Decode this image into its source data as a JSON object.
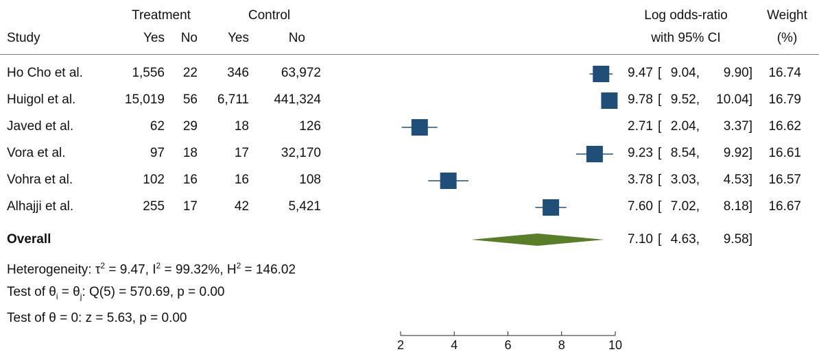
{
  "headers": {
    "treatment": "Treatment",
    "control": "Control",
    "study": "Study",
    "yes1": "Yes",
    "no1": "No",
    "yes2": "Yes",
    "no2": "No",
    "or_line1": "Log odds-ratio",
    "or_line2": "with 95% CI",
    "weight_line1": "Weight",
    "weight_line2": "(%)"
  },
  "rows": [
    {
      "study": "Ho Cho et al.",
      "t_yes": "1,556",
      "t_no": "22",
      "c_yes": "346",
      "c_no": "63,972",
      "est": "9.47",
      "lo": "9.04,",
      "hi": "9.90]",
      "weight": "16.74"
    },
    {
      "study": "Huigol et al.",
      "t_yes": "15,019",
      "t_no": "56",
      "c_yes": "6,711",
      "c_no": "441,324",
      "est": "9.78",
      "lo": "9.52,",
      "hi": "10.04]",
      "weight": "16.79"
    },
    {
      "study": "Javed et al.",
      "t_yes": "62",
      "t_no": "29",
      "c_yes": "18",
      "c_no": "126",
      "est": "2.71",
      "lo": "2.04,",
      "hi": "3.37]",
      "weight": "16.62"
    },
    {
      "study": "Vora et al.",
      "t_yes": "97",
      "t_no": "18",
      "c_yes": "17",
      "c_no": "32,170",
      "est": "9.23",
      "lo": "8.54,",
      "hi": "9.92]",
      "weight": "16.61"
    },
    {
      "study": "Vohra et al.",
      "t_yes": "102",
      "t_no": "16",
      "c_yes": "16",
      "c_no": "108",
      "est": "3.78",
      "lo": "3.03,",
      "hi": "4.53]",
      "weight": "16.57"
    },
    {
      "study": "Alhajji et al.",
      "t_yes": "255",
      "t_no": "17",
      "c_yes": "42",
      "c_no": "5,421",
      "est": "7.60",
      "lo": "7.02,",
      "hi": "8.18]",
      "weight": "16.67"
    }
  ],
  "overall": {
    "label": "Overall",
    "est": "7.10",
    "lo": "4.63,",
    "hi": "9.58]"
  },
  "stats": {
    "het_prefix": "Heterogeneity: τ",
    "het_mid": " = 9.47, I",
    "het_mid2": " = 99.32%, H",
    "het_end": " = 146.02",
    "sup2": "2",
    "test1_a": "Test of θ",
    "test1_i": "i",
    "test1_b": " = θ",
    "test1_j": "j",
    "test1_c": ": Q(5) = 570.69, p = 0.00",
    "test2": "Test of θ = 0: z = 5.63, p = 0.00"
  },
  "chart_data": {
    "type": "forest",
    "xlim": [
      2,
      10
    ],
    "xticks": [
      "2",
      "4",
      "6",
      "8",
      "10"
    ],
    "box_color": "#1f4e79",
    "diamond_color": "#5a7d2a",
    "studies": [
      {
        "name": "Ho Cho et al.",
        "est": 9.47,
        "lo": 9.04,
        "hi": 9.9,
        "weight": 16.74
      },
      {
        "name": "Huigol et al.",
        "est": 9.78,
        "lo": 9.52,
        "hi": 10.04,
        "weight": 16.79
      },
      {
        "name": "Javed et al.",
        "est": 2.71,
        "lo": 2.04,
        "hi": 3.37,
        "weight": 16.62
      },
      {
        "name": "Vora et al.",
        "est": 9.23,
        "lo": 8.54,
        "hi": 9.92,
        "weight": 16.61
      },
      {
        "name": "Vohra et al.",
        "est": 3.78,
        "lo": 3.03,
        "hi": 4.53,
        "weight": 16.57
      },
      {
        "name": "Alhajji et al.",
        "est": 7.6,
        "lo": 7.02,
        "hi": 8.18,
        "weight": 16.67
      }
    ],
    "overall": {
      "est": 7.1,
      "lo": 4.63,
      "hi": 9.58
    }
  }
}
